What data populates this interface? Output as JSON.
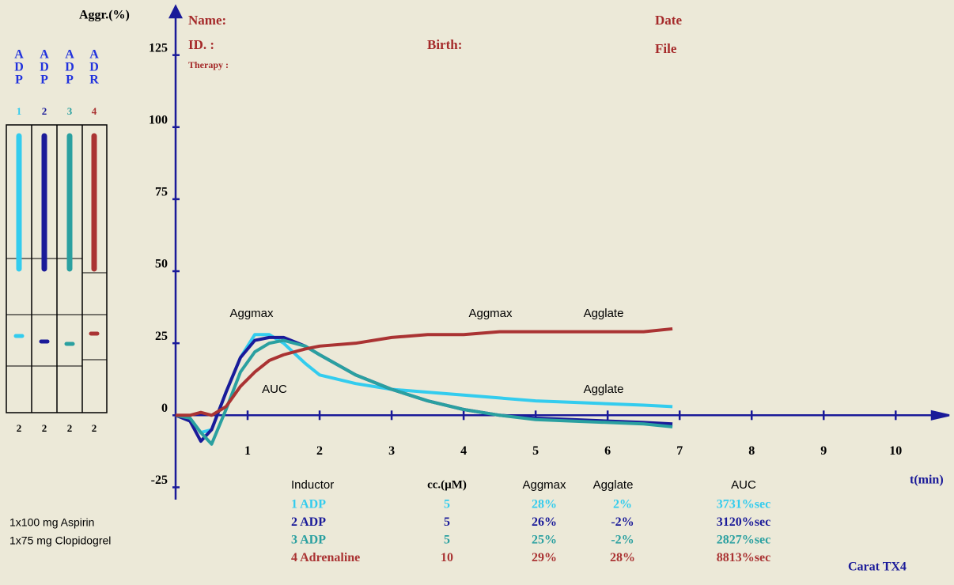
{
  "chart_data": {
    "type": "line",
    "y_label": "Aggr.(%)",
    "x_label": "t(min)",
    "xlim": [
      0,
      10.7
    ],
    "ylim": [
      -29,
      140
    ],
    "xticks": [
      1,
      2,
      3,
      4,
      5,
      6,
      7,
      8,
      9,
      10
    ],
    "yticks": [
      125,
      100,
      75,
      50,
      25,
      0,
      -25
    ],
    "axis_color": "#1a1a99",
    "x": [
      0,
      0.2,
      0.35,
      0.5,
      0.7,
      0.9,
      1.1,
      1.3,
      1.5,
      1.8,
      2.0,
      2.5,
      3,
      3.5,
      4,
      4.5,
      5,
      5.5,
      6,
      6.5,
      6.9
    ],
    "series": [
      {
        "name": "1 ADP",
        "color": "#33ccee",
        "values": [
          0,
          -1,
          -6,
          -5,
          8,
          20,
          28,
          28,
          25,
          18,
          14,
          11,
          9,
          8,
          7,
          6,
          5,
          4.5,
          4,
          3.5,
          3
        ]
      },
      {
        "name": "2 ADP",
        "color": "#1a1a99",
        "values": [
          0,
          -2,
          -9,
          -5,
          8,
          20,
          26,
          27,
          27,
          24,
          21,
          14,
          9,
          5,
          2,
          0,
          -1,
          -1.5,
          -2,
          -2.5,
          -3
        ]
      },
      {
        "name": "3 ADP",
        "color": "#2aa0a0",
        "values": [
          0,
          -1,
          -6,
          -10,
          2,
          15,
          22,
          25,
          26,
          24,
          21,
          14,
          9,
          5,
          2,
          0,
          -1.5,
          -2,
          -2.5,
          -3,
          -4
        ]
      },
      {
        "name": "4 Adrenaline",
        "color": "#aa3333",
        "values": [
          0,
          0,
          1,
          0,
          3,
          10,
          15,
          19,
          21,
          23,
          24,
          25,
          27,
          28,
          28,
          29,
          29,
          29,
          29,
          29,
          30
        ]
      }
    ],
    "annotations": [
      "Aggmax",
      "AUC",
      "Aggmax",
      "Agglate",
      "Agglate"
    ]
  },
  "header": {
    "name": "Name:",
    "id": "ID. :",
    "therapy": "Therapy :",
    "birth": "Birth:",
    "date": "Date",
    "file": "File"
  },
  "channels": [
    {
      "letters": [
        "A",
        "D",
        "P"
      ],
      "number": "1",
      "count": "2"
    },
    {
      "letters": [
        "A",
        "D",
        "P"
      ],
      "number": "2",
      "count": "2"
    },
    {
      "letters": [
        "A",
        "D",
        "P"
      ],
      "number": "3",
      "count": "2"
    },
    {
      "letters": [
        "A",
        "D",
        "R"
      ],
      "number": "4",
      "count": "2"
    }
  ],
  "table": {
    "columns": [
      "Inductor",
      "cc.(µM)",
      "Aggmax",
      "Agglate",
      "AUC"
    ],
    "rows": [
      [
        "1 ADP",
        "5",
        "28%",
        "2%",
        "3731%sec"
      ],
      [
        "2 ADP",
        "5",
        "26%",
        "-2%",
        "3120%sec"
      ],
      [
        "3 ADP",
        "5",
        "25%",
        "-2%",
        "2827%sec"
      ],
      [
        "4 Adrenaline",
        "10",
        "29%",
        "28%",
        "8813%sec"
      ]
    ]
  },
  "notes": [
    "1x100 mg Aspirin",
    "1x75 mg Clopidogrel"
  ],
  "device": "Carat TX4"
}
